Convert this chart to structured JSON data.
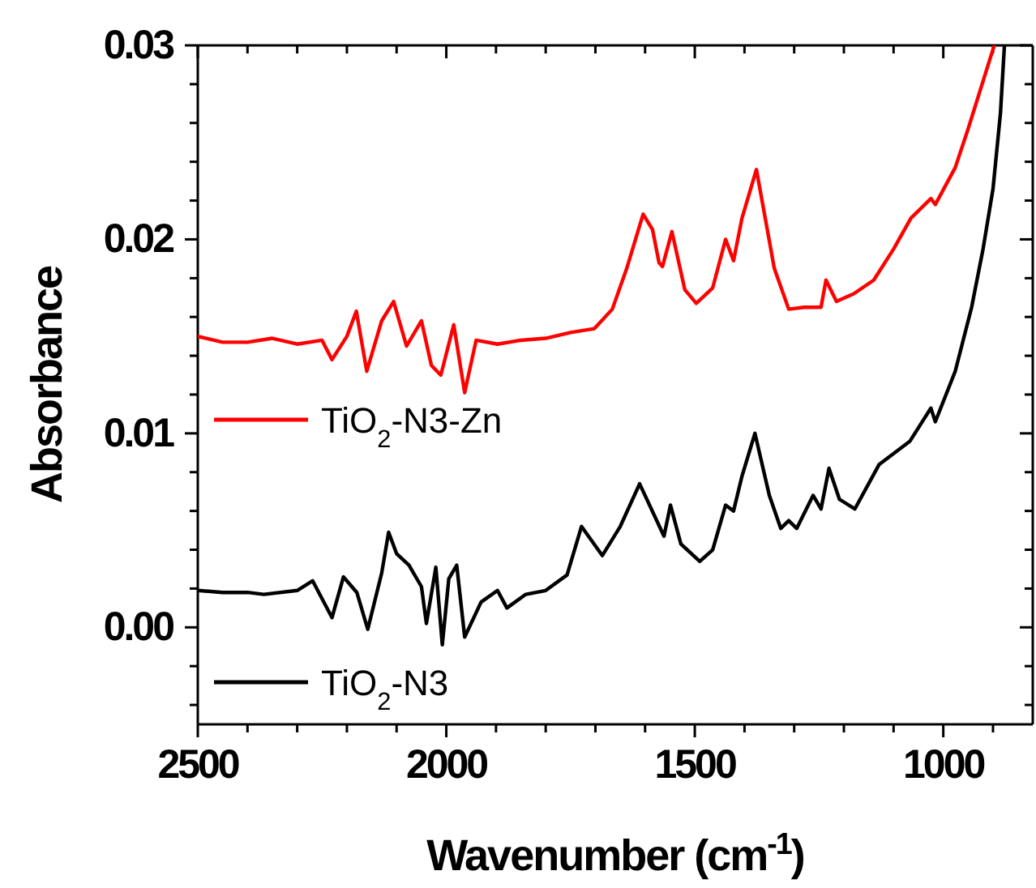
{
  "chart_data": {
    "type": "line",
    "xlabel": "Wavenumber (cm$^{-1}$)",
    "ylabel": "Absorbance",
    "xlim": [
      2500,
      820
    ],
    "ylim": [
      -0.005,
      0.03
    ],
    "xticks": [
      2500,
      {
        "value": 2400,
        "label": null
      },
      {
        "value": 2300,
        "label": null
      },
      {
        "value": 2200,
        "label": null
      },
      {
        "value": 2100,
        "label": null
      },
      2000,
      {
        "value": 1900,
        "label": null
      },
      {
        "value": 1800,
        "label": null
      },
      {
        "value": 1700,
        "label": null
      },
      {
        "value": 1600,
        "label": null
      },
      1500,
      {
        "value": 1400,
        "label": null
      },
      {
        "value": 1300,
        "label": null
      },
      {
        "value": 1200,
        "label": null
      },
      {
        "value": 1100,
        "label": null
      },
      1000,
      {
        "value": 900,
        "label": null
      }
    ],
    "yticks": [
      {
        "value": -0.004,
        "label": null
      },
      {
        "value": -0.002,
        "label": null
      },
      {
        "value": 0,
        "label": "0.00"
      },
      {
        "value": 0.002,
        "label": null
      },
      {
        "value": 0.004,
        "label": null
      },
      {
        "value": 0.006,
        "label": null
      },
      {
        "value": 0.008,
        "label": null
      },
      {
        "value": 0.01,
        "label": "0.01"
      },
      {
        "value": 0.012,
        "label": null
      },
      {
        "value": 0.014,
        "label": null
      },
      {
        "value": 0.016,
        "label": null
      },
      {
        "value": 0.018,
        "label": null
      },
      {
        "value": 0.02,
        "label": "0.02"
      },
      {
        "value": 0.022,
        "label": null
      },
      {
        "value": 0.024,
        "label": null
      },
      {
        "value": 0.026,
        "label": null
      },
      {
        "value": 0.028,
        "label": null
      },
      {
        "value": 0.03,
        "label": "0.03"
      }
    ],
    "legend": "bottom left",
    "marker": "none",
    "line_style": "solid",
    "grid": false,
    "series": [
      {
        "name": "TiO$_{2}$-N3-Zn",
        "color": "#ff0000",
        "x": [
          2500,
          2450,
          2400,
          2350,
          2300,
          2250,
          2230,
          2200,
          2181,
          2160,
          2130,
          2106,
          2080,
          2050,
          2030,
          2011,
          1985,
          1963,
          1940,
          1897,
          1850,
          1800,
          1750,
          1702,
          1666,
          1637,
          1604,
          1585,
          1572,
          1565,
          1546,
          1520,
          1497,
          1464,
          1438,
          1422,
          1405,
          1376,
          1340,
          1311,
          1280,
          1246,
          1236,
          1215,
          1180,
          1140,
          1100,
          1065,
          1025,
          1016,
          976,
          950,
          900,
          897
        ],
        "values": [
          0.015,
          0.0147,
          0.0147,
          0.0149,
          0.0146,
          0.0148,
          0.0138,
          0.015,
          0.0163,
          0.0132,
          0.0158,
          0.0168,
          0.0145,
          0.0158,
          0.0135,
          0.013,
          0.0156,
          0.0121,
          0.0148,
          0.0146,
          0.0148,
          0.0149,
          0.0152,
          0.0154,
          0.0164,
          0.0185,
          0.0213,
          0.0205,
          0.0188,
          0.0186,
          0.0204,
          0.0174,
          0.0167,
          0.0175,
          0.02,
          0.0189,
          0.0211,
          0.0236,
          0.0185,
          0.0164,
          0.0165,
          0.0165,
          0.0179,
          0.0168,
          0.0172,
          0.0179,
          0.0195,
          0.0211,
          0.0221,
          0.0218,
          0.0237,
          0.0257,
          0.0298,
          0.03
        ]
      },
      {
        "name": "TiO$_{2}$-N3",
        "color": "#000000",
        "x": [
          2500,
          2450,
          2400,
          2367,
          2300,
          2269,
          2230,
          2207,
          2180,
          2158,
          2130,
          2116,
          2100,
          2075,
          2050,
          2040,
          2021,
          2008,
          1995,
          1979,
          1963,
          1930,
          1897,
          1878,
          1840,
          1800,
          1757,
          1728,
          1686,
          1650,
          1611,
          1562,
          1549,
          1528,
          1490,
          1464,
          1438,
          1422,
          1405,
          1379,
          1350,
          1327,
          1311,
          1295,
          1262,
          1246,
          1230,
          1209,
          1178,
          1129,
          1067,
          1025,
          1016,
          976,
          943,
          920,
          900,
          885,
          877
        ],
        "values": [
          0.0019,
          0.0018,
          0.0018,
          0.0017,
          0.0019,
          0.0024,
          0.0005,
          0.0026,
          0.0018,
          -0.0001,
          0.0028,
          0.0049,
          0.0038,
          0.0032,
          0.0021,
          0.0002,
          0.0031,
          -0.0009,
          0.0025,
          0.0032,
          -0.0005,
          0.0013,
          0.0019,
          0.001,
          0.0017,
          0.0019,
          0.0027,
          0.0052,
          0.0037,
          0.0052,
          0.0074,
          0.0047,
          0.0063,
          0.0043,
          0.0034,
          0.004,
          0.0063,
          0.006,
          0.0078,
          0.01,
          0.0068,
          0.0051,
          0.0055,
          0.0051,
          0.0068,
          0.0061,
          0.0082,
          0.0066,
          0.0061,
          0.0084,
          0.0096,
          0.0113,
          0.0106,
          0.0132,
          0.0165,
          0.0195,
          0.0226,
          0.0265,
          0.03
        ]
      }
    ]
  }
}
